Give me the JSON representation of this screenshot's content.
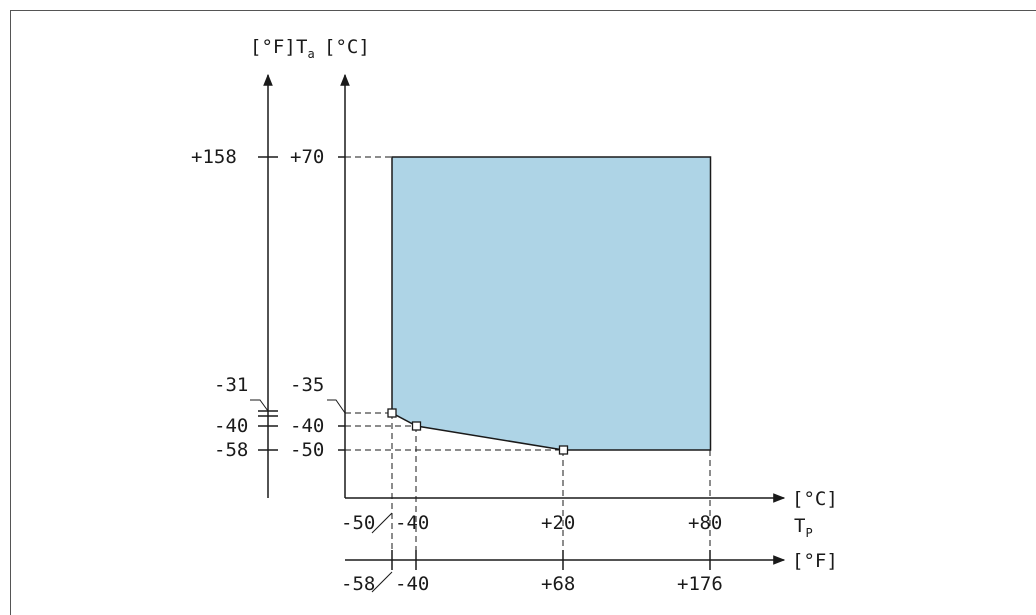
{
  "units": {
    "fahrenheit": "[°F]",
    "celsius": "[°C]"
  },
  "axes": {
    "y_symbol": "T",
    "y_subscript": "a",
    "x_symbol": "T",
    "x_subscript": "P"
  },
  "chart_data": {
    "type": "area",
    "x_unit": "°C",
    "y_unit": "°C",
    "x_ticks_c": [
      "-50",
      "-40",
      "+20",
      "+80"
    ],
    "x_ticks_f": [
      "-58",
      "-40",
      "+68",
      "+176"
    ],
    "y_ticks_c": [
      "+70",
      "-35",
      "-40",
      "-50"
    ],
    "y_ticks_f": [
      "+158",
      "-31",
      "-40",
      "-58"
    ],
    "region_outline_points": [
      {
        "x": -50,
        "y": 70
      },
      {
        "x": 80,
        "y": 70
      },
      {
        "x": 80,
        "y": -50
      },
      {
        "x": 20,
        "y": -50
      },
      {
        "x": -40,
        "y": -40
      },
      {
        "x": -50,
        "y": -35
      }
    ],
    "marked_points": [
      {
        "x": -50,
        "y": -35
      },
      {
        "x": -40,
        "y": -40
      },
      {
        "x": 20,
        "y": -50
      }
    ],
    "fill_color": "#aed4e6"
  }
}
